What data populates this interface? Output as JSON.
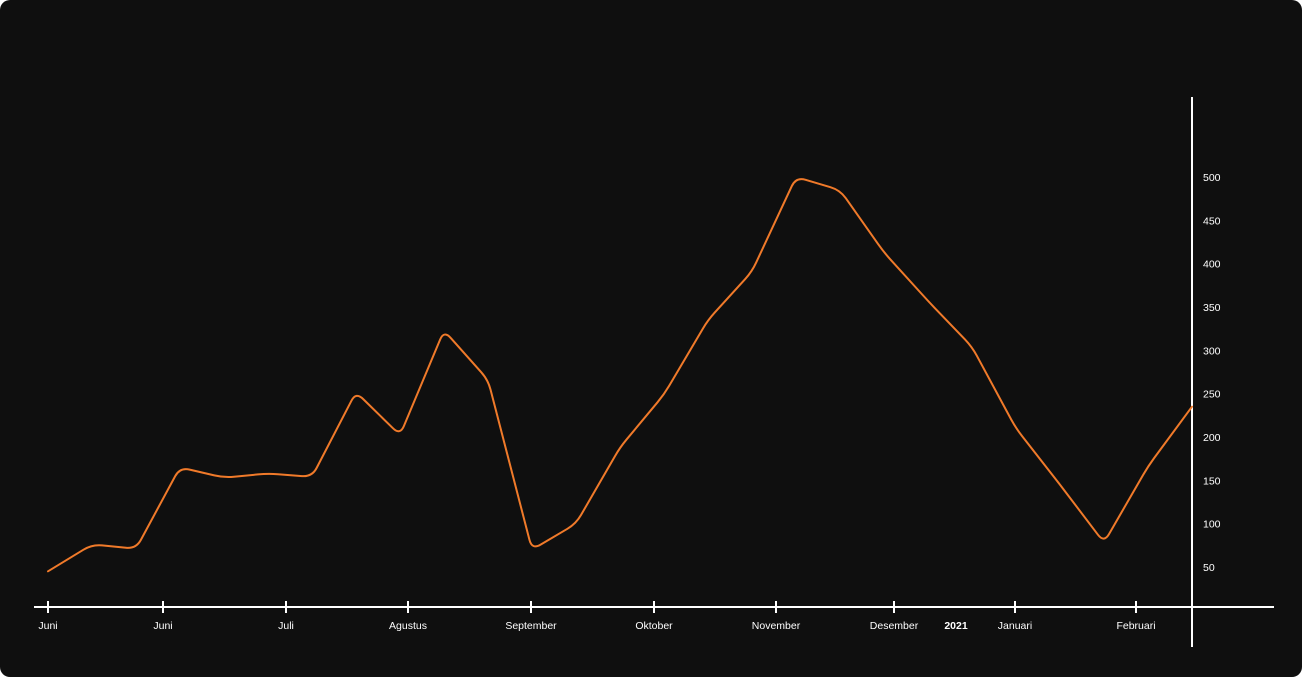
{
  "chart_data": {
    "type": "line",
    "title": "",
    "xlabel": "",
    "ylabel": "",
    "ylim": [
      15,
      575
    ],
    "y_ticks": [
      50,
      100,
      150,
      200,
      250,
      300,
      350,
      400,
      450,
      500
    ],
    "grid": false,
    "x_ticks": [
      "Juni",
      "Juni",
      "Juli",
      "Agustus",
      "September",
      "Oktober",
      "November",
      "Desember",
      "Januari",
      "Februari"
    ],
    "year_marker": "2021",
    "colors": {
      "background": "#0f0f0f",
      "axis": "#ffffff",
      "line": "#f07a2a"
    },
    "series": [
      {
        "values": [
          45,
          76,
          71,
          165,
          153,
          158,
          154,
          252,
          202,
          323,
          266,
          70,
          100,
          188,
          249,
          335,
          391,
          500,
          485,
          413,
          357,
          304,
          210,
          145,
          78,
          166,
          235
        ]
      }
    ]
  }
}
